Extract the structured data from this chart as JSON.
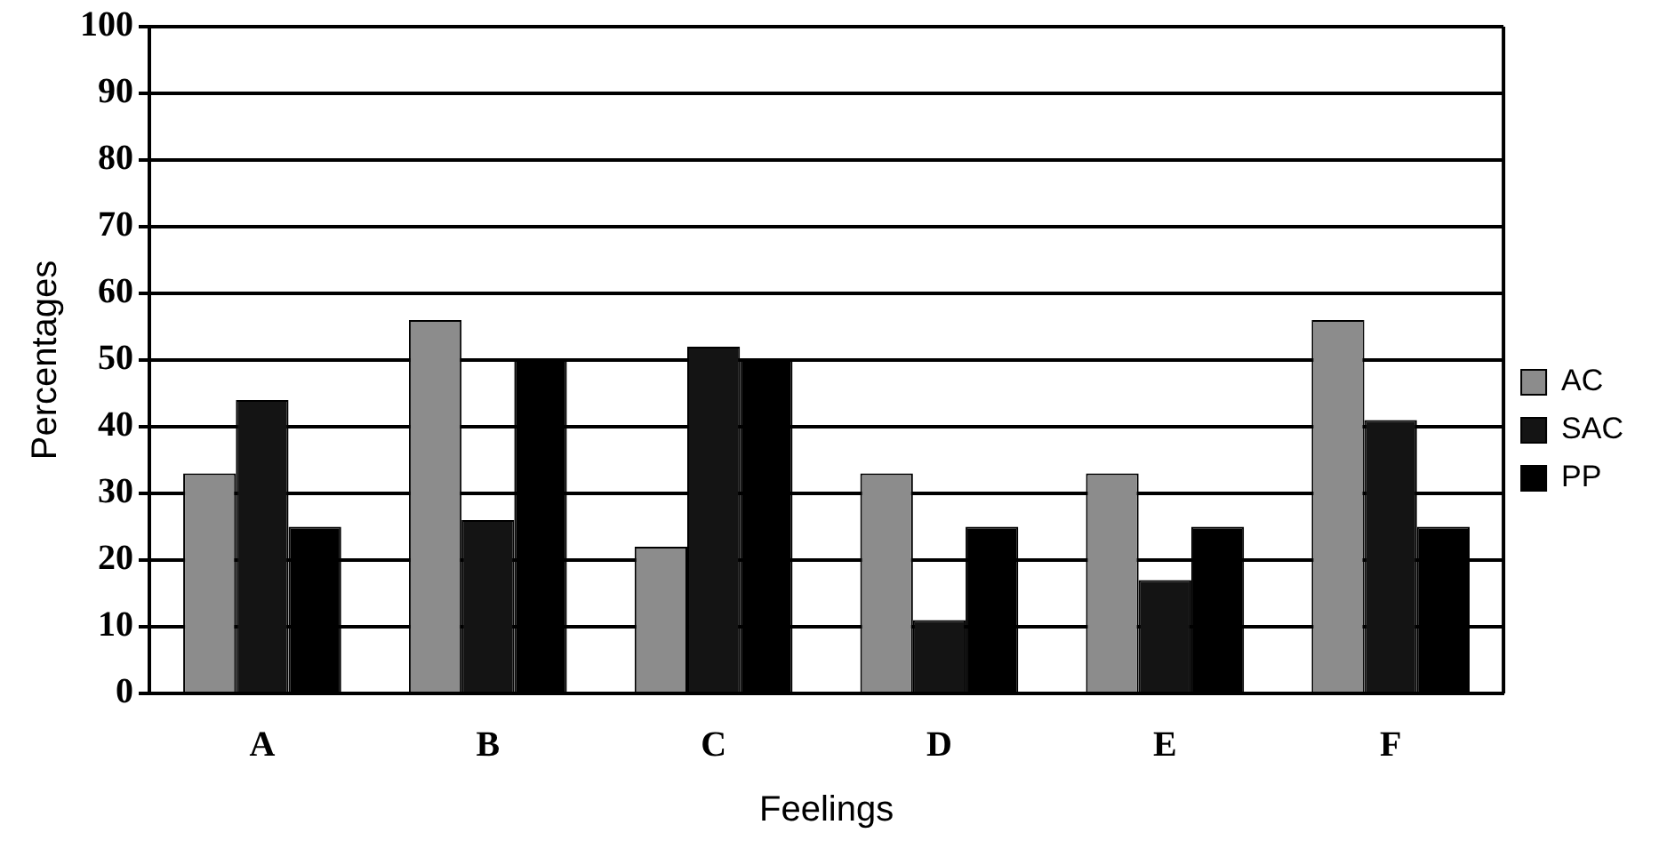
{
  "chart_data": {
    "type": "bar",
    "xlabel": "Feelings",
    "ylabel": "Percentages",
    "categories": [
      "A",
      "B",
      "C",
      "D",
      "E",
      "F"
    ],
    "series": [
      {
        "name": "AC",
        "color": "#8c8c8c",
        "values": [
          33,
          56,
          22,
          33,
          33,
          56
        ]
      },
      {
        "name": "SAC",
        "color": "#141414",
        "values": [
          44,
          26,
          52,
          11,
          17,
          41
        ]
      },
      {
        "name": "PP",
        "color": "#000000",
        "values": [
          25,
          50,
          50,
          25,
          25,
          25
        ]
      }
    ],
    "ylim": [
      0,
      100
    ],
    "yticks": [
      0,
      10,
      20,
      30,
      40,
      50,
      60,
      70,
      80,
      90,
      100
    ],
    "grid": "y",
    "legend": "right"
  }
}
